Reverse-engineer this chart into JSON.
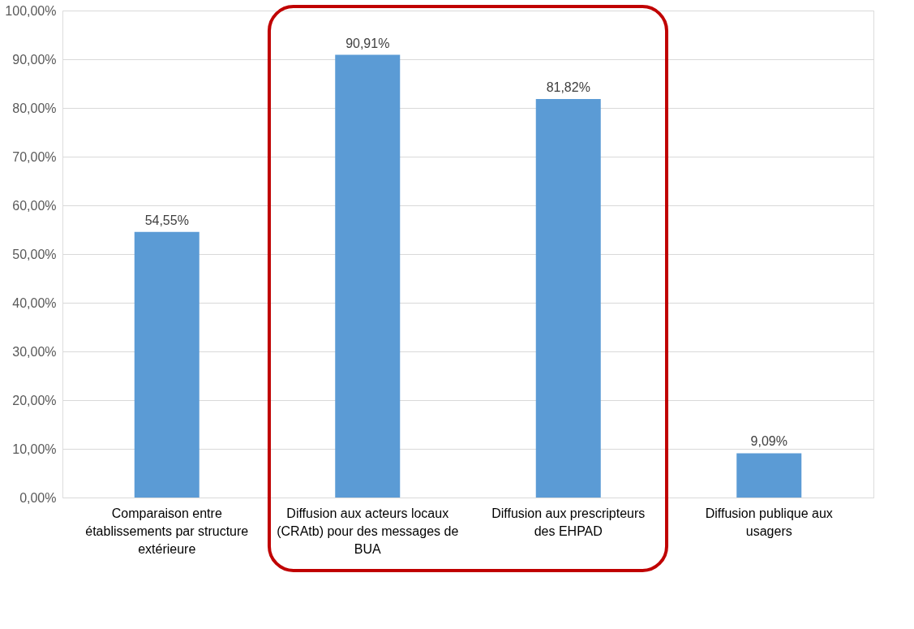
{
  "chart_data": {
    "type": "bar",
    "categories": [
      "Comparaison entre établissements par structure extérieure",
      "Diffusion aux acteurs locaux (CRAtb) pour des messages de BUA",
      "Diffusion aux prescripteurs des EHPAD",
      "Diffusion publique aux usagers"
    ],
    "values": [
      54.55,
      90.91,
      81.82,
      9.09
    ],
    "value_labels": [
      "54,55%",
      "90,91%",
      "81,82%",
      "9,09%"
    ],
    "color": "#5b9bd5",
    "ylim": [
      0,
      100
    ],
    "yticks": [
      {
        "value": 0,
        "label": "0,00%"
      },
      {
        "value": 10,
        "label": "10,00%"
      },
      {
        "value": 20,
        "label": "20,00%"
      },
      {
        "value": 30,
        "label": "30,00%"
      },
      {
        "value": 40,
        "label": "40,00%"
      },
      {
        "value": 50,
        "label": "50,00%"
      },
      {
        "value": 60,
        "label": "60,00%"
      },
      {
        "value": 70,
        "label": "70,00%"
      },
      {
        "value": 80,
        "label": "80,00%"
      },
      {
        "value": 90,
        "label": "90,00%"
      },
      {
        "value": 100,
        "label": "100,00%"
      }
    ],
    "grid": "y"
  }
}
